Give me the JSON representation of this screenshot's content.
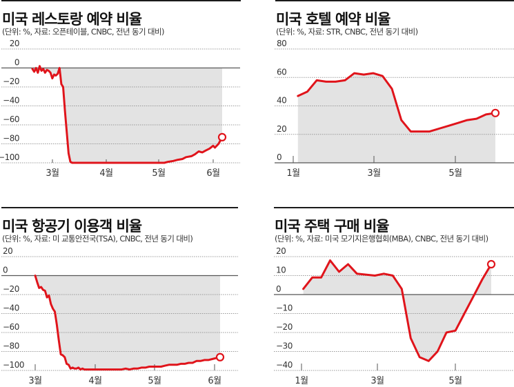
{
  "colors": {
    "line": "#e0141b",
    "fill": "#e3e3e3",
    "grid": "#999999",
    "axis": "#555555",
    "rule": "#1a1a1a"
  },
  "panels": [
    {
      "id": "restaurant",
      "title": "미국 레스토랑 예약 비율",
      "subtitle": "(단위: %, 자료: 오픈테이블, CNBC, 전년 동기 대비)"
    },
    {
      "id": "hotel",
      "title": "미국 호텔 예약 비율",
      "subtitle": "(단위: %, 자료: STR, CNBC, 전년 동기 대비)"
    },
    {
      "id": "airline",
      "title": "미국 항공기 이용객 비율",
      "subtitle": "(단위: %, 자료: 미 교통안전국(TSA), CNBC, 전년 동기 대비)"
    },
    {
      "id": "housing",
      "title": "미국 주택 구매 비율",
      "subtitle": "(단위: %, 자료: 미국 모기지은행협회(MBA), CNBC, 전년 동기 대비)"
    }
  ],
  "chart_data": [
    {
      "type": "area",
      "title": "미국 레스토랑 예약 비율",
      "subtitle": "(단위: %, 자료: 오픈테이블, CNBC, 전년 동기 대비)",
      "xlabel": "",
      "ylabel": "%",
      "ylim": [
        -100,
        20
      ],
      "yticks": [
        20,
        0,
        -20,
        -40,
        -60,
        -80,
        -100
      ],
      "xticks": [
        "3월",
        "4월",
        "5월",
        "6월"
      ],
      "grid": true,
      "x_unit": "days since Feb 18 (3월=12, 4월=43, 5월=73, 6월=104)",
      "x": [
        0,
        1,
        2,
        3,
        4,
        5,
        6,
        7,
        8,
        9,
        10,
        11,
        12,
        13,
        14,
        15,
        16,
        17,
        18,
        19,
        20,
        21,
        22,
        23,
        24,
        25,
        26,
        28,
        30,
        35,
        40,
        45,
        50,
        55,
        60,
        65,
        70,
        73,
        75,
        78,
        80,
        83,
        85,
        88,
        90,
        92,
        94,
        96,
        98,
        100,
        101,
        103,
        105
      ],
      "values": [
        -1,
        -4,
        0,
        -5,
        2,
        -3,
        -1,
        -5,
        -2,
        -3,
        -5,
        -11,
        -7,
        -8,
        -6,
        0,
        -17,
        -20,
        -45,
        -68,
        -90,
        -99,
        -100,
        -100,
        -100,
        -100,
        -100,
        -100,
        -100,
        -100,
        -100,
        -100,
        -100,
        -100,
        -100,
        -100,
        -100,
        -100,
        -99,
        -98,
        -97,
        -96,
        -94,
        -93,
        -91,
        -88,
        -89,
        -87,
        -85,
        -82,
        -84,
        -80,
        -73
      ],
      "last_point_marker": true
    },
    {
      "type": "area",
      "title": "미국 호텔 예약 비율",
      "subtitle": "(단위: %, 자료: STR, CNBC, 전년 동기 대비)",
      "xlabel": "",
      "ylabel": "%",
      "ylim": [
        0,
        80
      ],
      "yticks": [
        80,
        60,
        40,
        20,
        0
      ],
      "xticks": [
        "1월",
        "3월",
        "5월"
      ],
      "grid": true,
      "x_unit": "weeks since Jan 1 (1월=0, 3월=8.5, 5월=17)",
      "x": [
        0.5,
        1.5,
        2.5,
        3.5,
        4.5,
        5.5,
        6.5,
        7.5,
        8.5,
        9.5,
        10.5,
        11.5,
        12.5,
        13.5,
        14.5,
        15.5,
        16.5,
        17.5,
        18.5,
        19.5,
        20.5,
        21.5
      ],
      "values": [
        47,
        50,
        58,
        57,
        57,
        58,
        63,
        62,
        63,
        61,
        52,
        30,
        22,
        22,
        22,
        24,
        26,
        28,
        30,
        31,
        34,
        35
      ],
      "last_point_marker": true
    },
    {
      "type": "area",
      "title": "미국 항공기 이용객 비율",
      "subtitle": "(단위: %, 자료: 미 교통안전국(TSA), CNBC, 전년 동기 대비)",
      "xlabel": "",
      "ylabel": "%",
      "ylim": [
        -100,
        20
      ],
      "yticks": [
        20,
        0,
        -20,
        -40,
        -60,
        -80,
        -100
      ],
      "xticks": [
        "3월",
        "4월",
        "5월",
        "6월"
      ],
      "grid": true,
      "x_unit": "days since Mar 1 (3월=0, 4월=31, 5월=61, 6월=92)",
      "x": [
        0,
        1,
        2,
        3,
        4,
        5,
        6,
        7,
        8,
        9,
        10,
        11,
        12,
        13,
        14,
        15,
        16,
        17,
        18,
        19,
        20,
        21,
        22,
        23,
        24,
        25,
        26,
        28,
        30,
        32,
        34,
        36,
        38,
        40,
        42,
        44,
        46,
        48,
        50,
        52,
        54,
        56,
        58,
        60,
        62,
        64,
        66,
        68,
        70,
        72,
        74,
        76,
        78,
        80,
        82,
        84,
        86,
        88,
        90,
        92,
        94
      ],
      "values": [
        0,
        -7,
        -13,
        -12,
        -15,
        -16,
        -23,
        -21,
        -30,
        -35,
        -38,
        -52,
        -68,
        -83,
        -84,
        -86,
        -93,
        -94,
        -98,
        -97,
        -98,
        -98,
        -97,
        -99,
        -98,
        -99,
        -99,
        -99,
        -99,
        -99,
        -99,
        -99,
        -99,
        -99,
        -99,
        -99,
        -98,
        -99,
        -98,
        -98,
        -97,
        -97,
        -96,
        -96,
        -96,
        -96,
        -95,
        -94,
        -94,
        -94,
        -93,
        -93,
        -92,
        -92,
        -90,
        -90,
        -89,
        -89,
        -88,
        -87,
        -86
      ],
      "last_point_marker": true
    },
    {
      "type": "area",
      "title": "미국 주택 구매 비율",
      "subtitle": "(단위: %, 자료: 미국 모기지은행협회(MBA), CNBC, 전년 동기 대비)",
      "xlabel": "",
      "ylabel": "%",
      "ylim": [
        -40,
        20
      ],
      "yticks": [
        20,
        10,
        0,
        -10,
        -20,
        -30,
        -40
      ],
      "xticks": [
        "1월",
        "3월",
        "5월"
      ],
      "grid": true,
      "x_unit": "weeks since Jan 1 (1월=0, 3월=8.5, 5월=17)",
      "x": [
        0.2,
        1.2,
        2.2,
        3.2,
        4.2,
        5.2,
        6.2,
        7.2,
        8.2,
        9.2,
        10.2,
        11.2,
        12.2,
        13.2,
        14.2,
        15.2,
        16.2,
        17.2,
        18.2,
        19.2,
        20.2,
        21.2
      ],
      "values": [
        3,
        9,
        9,
        18,
        12,
        16,
        11,
        10.5,
        10,
        11,
        10,
        3,
        -23,
        -33,
        -35,
        -30,
        -20,
        -19,
        -10,
        -1,
        8,
        16
      ],
      "last_point_marker": true
    }
  ]
}
